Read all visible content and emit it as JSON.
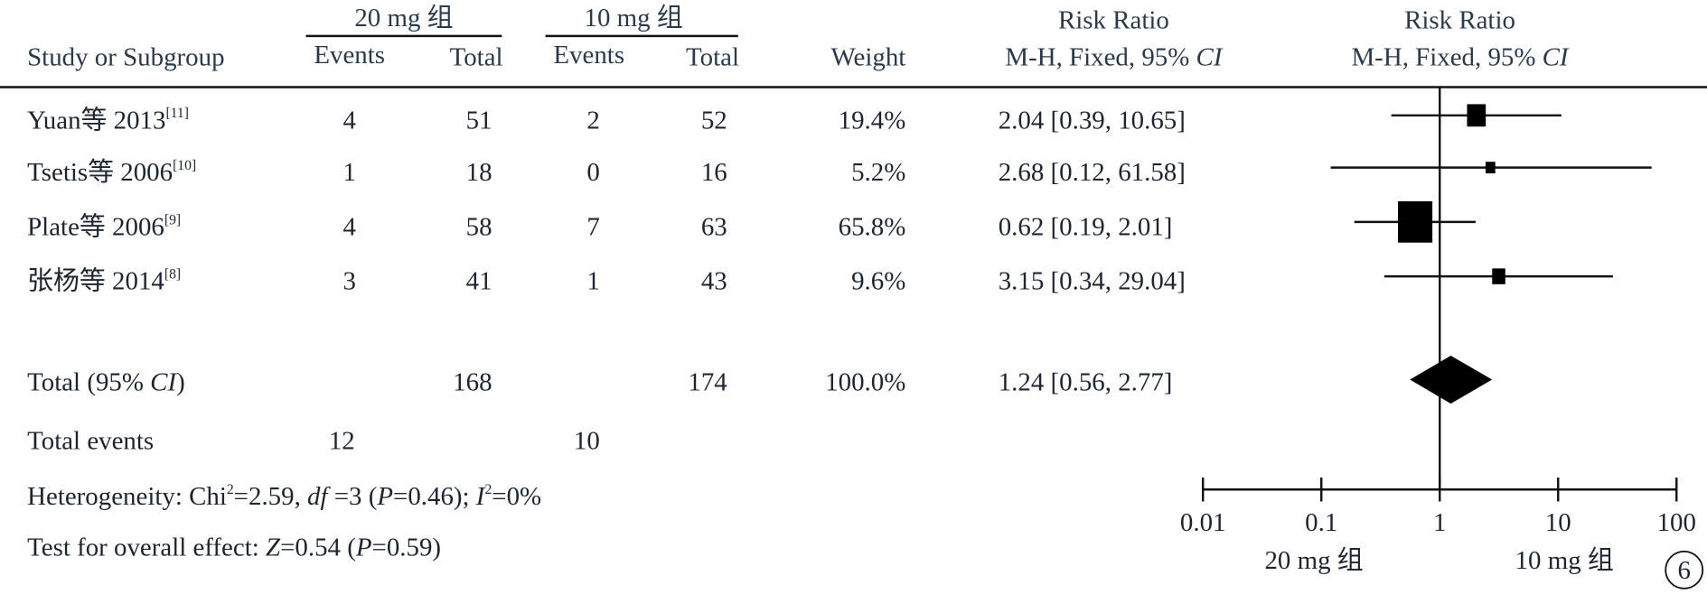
{
  "header": {
    "group1": "20 mg 组",
    "group2": "10 mg 组",
    "study": "Study or Subgroup",
    "events1": "Events",
    "total1": "Total",
    "events2": "Events",
    "total2": "Total",
    "weight": "Weight",
    "rr_title": "Risk Ratio",
    "rr_method": "M-H, Fixed, 95% ",
    "rr_ci": "CI",
    "plot_title": "Risk Ratio",
    "plot_method": "M-H, Fixed, 95% ",
    "plot_ci": "CI"
  },
  "studies": [
    {
      "name": "Yuan等 2013",
      "ref": "[11]",
      "events1": 4,
      "total1": 51,
      "events2": 2,
      "total2": 52,
      "weight": 19.4,
      "weight_label": "19.4%",
      "rr": 2.04,
      "ci": [
        0.39,
        10.65
      ],
      "rr_label": "2.04 [0.39, 10.65]"
    },
    {
      "name": "Tsetis等 2006",
      "ref": "[10]",
      "events1": 1,
      "total1": 18,
      "events2": 0,
      "total2": 16,
      "weight": 5.2,
      "weight_label": "5.2%",
      "rr": 2.68,
      "ci": [
        0.12,
        61.58
      ],
      "rr_label": "2.68 [0.12, 61.58]"
    },
    {
      "name": "Plate等 2006",
      "ref": "[9]",
      "events1": 4,
      "total1": 58,
      "events2": 7,
      "total2": 63,
      "weight": 65.8,
      "weight_label": "65.8%",
      "rr": 0.62,
      "ci": [
        0.19,
        2.01
      ],
      "rr_label": "0.62 [0.19, 2.01]"
    },
    {
      "name": "张杨等 2014",
      "ref": "[8]",
      "events1": 3,
      "total1": 41,
      "events2": 1,
      "total2": 43,
      "weight": 9.6,
      "weight_label": "9.6%",
      "rr": 3.15,
      "ci": [
        0.34,
        29.04
      ],
      "rr_label": "3.15 [0.34, 29.04]"
    }
  ],
  "total": {
    "label": [
      "Total (95% ",
      "CI",
      ")"
    ],
    "total1": 168,
    "total2": 174,
    "weight": 100,
    "weight_label": "100.0%",
    "rr": 1.24,
    "ci": [
      0.56,
      2.77
    ],
    "rr_label": "1.24 [0.56, 2.77]"
  },
  "total_events": {
    "label": "Total events",
    "events1": 12,
    "events2": 10
  },
  "heterogeneity": [
    "Heterogeneity: Chi",
    "2",
    "=2.59, ",
    "df",
    " =3 (",
    "P",
    "=0.46); ",
    "I",
    "2",
    "=0%"
  ],
  "overall_effect": [
    "Test for overall effect: ",
    "Z",
    "=0.54 (",
    "P",
    "=0.59)"
  ],
  "axis": {
    "scale": "log",
    "xlim": [
      0.01,
      100
    ],
    "xticks": [
      0.01,
      0.1,
      1,
      10,
      100
    ],
    "left_label": "20 mg 组",
    "right_label": "10 mg 组"
  },
  "figure_number": "6"
}
